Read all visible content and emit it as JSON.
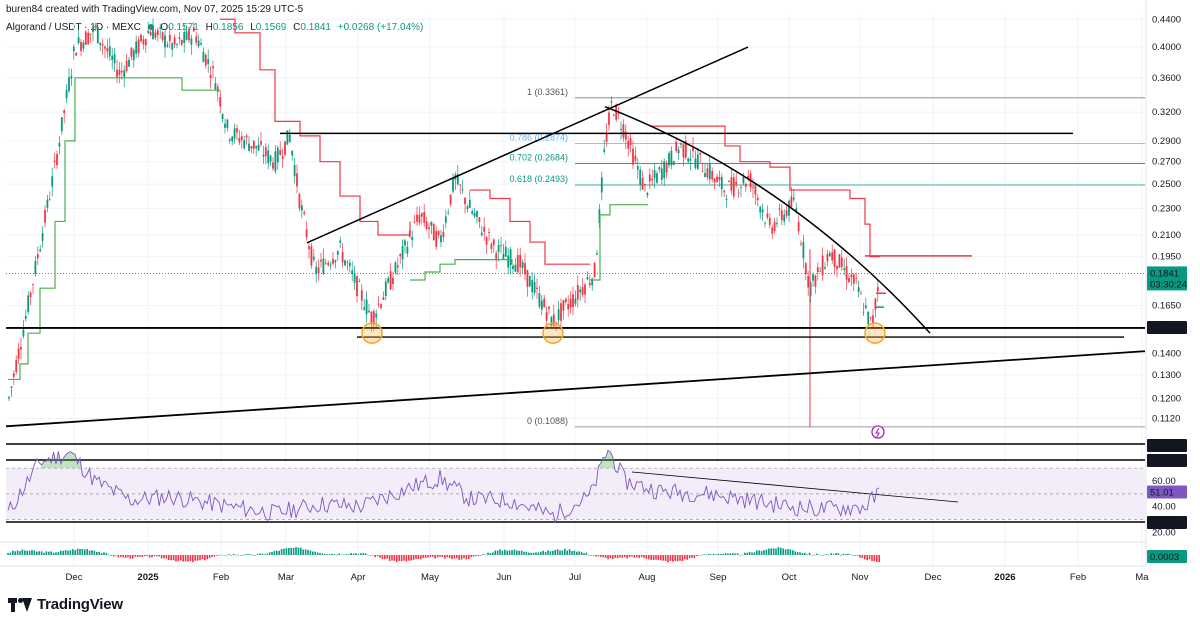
{
  "caption": "buren84 created with TradingView.com, Nov 07, 2025 15:29 UTC-5",
  "legend": {
    "symbol": "Algorand / USDT · 1D · MEXC",
    "open_label": "O",
    "open": "0.1571",
    "high_label": "H",
    "high": "0.1856",
    "low_label": "L",
    "low": "0.1569",
    "close_label": "C",
    "close": "0.1841",
    "change": "+0.0268 (+17.04%)"
  },
  "branding": {
    "logo_text": "TradingView"
  },
  "colors": {
    "up": "#089981",
    "down": "#f23645",
    "supertrend_up": "#4caf50",
    "supertrend_down": "#f23645",
    "rsi": "#7e57c2",
    "fib_blue": "#64b5f6",
    "fib_green": "#089981"
  },
  "chart_data": {
    "type": "candlestick",
    "symbol": "Algorand / USDT",
    "interval": "1D",
    "exchange": "MEXC",
    "price_axis": {
      "ticks": [
        "0.4400",
        "0.4000",
        "0.3600",
        "0.3200",
        "0.2900",
        "0.2700",
        "0.2500",
        "0.2300",
        "0.2100",
        "0.1950",
        "0.1650",
        "0.1400",
        "0.1300",
        "0.1200",
        "0.1120"
      ],
      "ylim": [
        0.104,
        0.448
      ],
      "scale": "log"
    },
    "time_axis": {
      "ticks": [
        "Dec",
        "2025",
        "Feb",
        "Mar",
        "Apr",
        "May",
        "Jun",
        "Jul",
        "Aug",
        "Sep",
        "Oct",
        "Nov",
        "Dec",
        "2026",
        "Feb",
        "Ma"
      ]
    },
    "price_badges": [
      {
        "value": "0.1841",
        "sub": "03:30:24",
        "color": "#089981"
      },
      {
        "value": "0.1527",
        "color": "#131722"
      }
    ],
    "last_price": 0.1841,
    "fib_levels": [
      {
        "label": "1 (0.3361)",
        "price": 0.3361
      },
      {
        "label": "0.786 (0.2874)",
        "price": 0.2874
      },
      {
        "label": "0.702 (0.2684)",
        "price": 0.2684
      },
      {
        "label": "0.618 (0.2493)",
        "price": 0.2493
      },
      {
        "label": "0 (0.1088)",
        "price": 0.1088
      }
    ],
    "support_levels": [
      0.1527,
      0.148
    ],
    "swing_low_markers": [
      "Apr",
      "Jun",
      "Nov"
    ],
    "rsi": {
      "ticks": [
        "60.00",
        "40.00",
        "20.00"
      ],
      "ylim": [
        14,
        92
      ],
      "badges": [
        {
          "value": "83.53",
          "color": "#131722"
        },
        {
          "value": "73.11",
          "color": "#131722"
        },
        {
          "value": "51.01",
          "color": "#7e57c2"
        },
        {
          "value": "29.21",
          "color": "#131722"
        }
      ],
      "band": [
        30,
        70
      ],
      "last": 51.01
    },
    "macd_histogram": {
      "last": "0.0003"
    }
  }
}
